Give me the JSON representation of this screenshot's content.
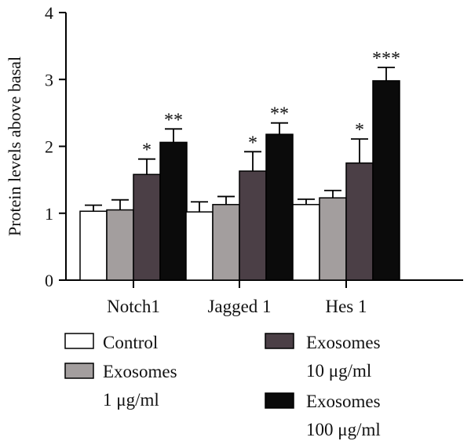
{
  "chart_data": {
    "type": "bar",
    "title": "",
    "xlabel": "",
    "ylabel": "Protein levels above basal",
    "ylim": [
      0,
      4
    ],
    "yticks": [
      "0",
      "1",
      "2",
      "3",
      "4"
    ],
    "grid": false,
    "legend_position": "bottom",
    "categories": [
      "Notch1",
      "Jagged 1",
      "Hes 1"
    ],
    "series": [
      {
        "name": "Control",
        "color": "#ffffff",
        "values": [
          1.03,
          1.02,
          1.13
        ],
        "errors": [
          0.09,
          0.15,
          0.08
        ],
        "sig": [
          "",
          "",
          ""
        ]
      },
      {
        "name": "Exosomes 1 μg/ml",
        "color": "#a39e9e",
        "values": [
          1.05,
          1.13,
          1.23
        ],
        "errors": [
          0.15,
          0.12,
          0.11
        ],
        "sig": [
          "",
          "",
          ""
        ]
      },
      {
        "name": "Exosomes 10 μg/ml",
        "color": "#4b3f46",
        "values": [
          1.58,
          1.63,
          1.75
        ],
        "errors": [
          0.23,
          0.29,
          0.36
        ],
        "sig": [
          "*",
          "*",
          "*"
        ]
      },
      {
        "name": "Exosomes 100 μg/ml",
        "color": "#0b0b0b",
        "values": [
          2.06,
          2.18,
          2.98
        ],
        "errors": [
          0.2,
          0.17,
          0.2
        ],
        "sig": [
          "**",
          "**",
          "***"
        ]
      }
    ]
  },
  "legend": {
    "items": [
      {
        "series_index": 0,
        "lines": [
          "Control"
        ]
      },
      {
        "series_index": 1,
        "lines": [
          "Exosomes",
          "1 μg/ml"
        ]
      },
      {
        "series_index": 2,
        "lines": [
          "Exosomes",
          "10 μg/ml"
        ]
      },
      {
        "series_index": 3,
        "lines": [
          "Exosomes",
          "100 μg/ml"
        ]
      }
    ]
  }
}
